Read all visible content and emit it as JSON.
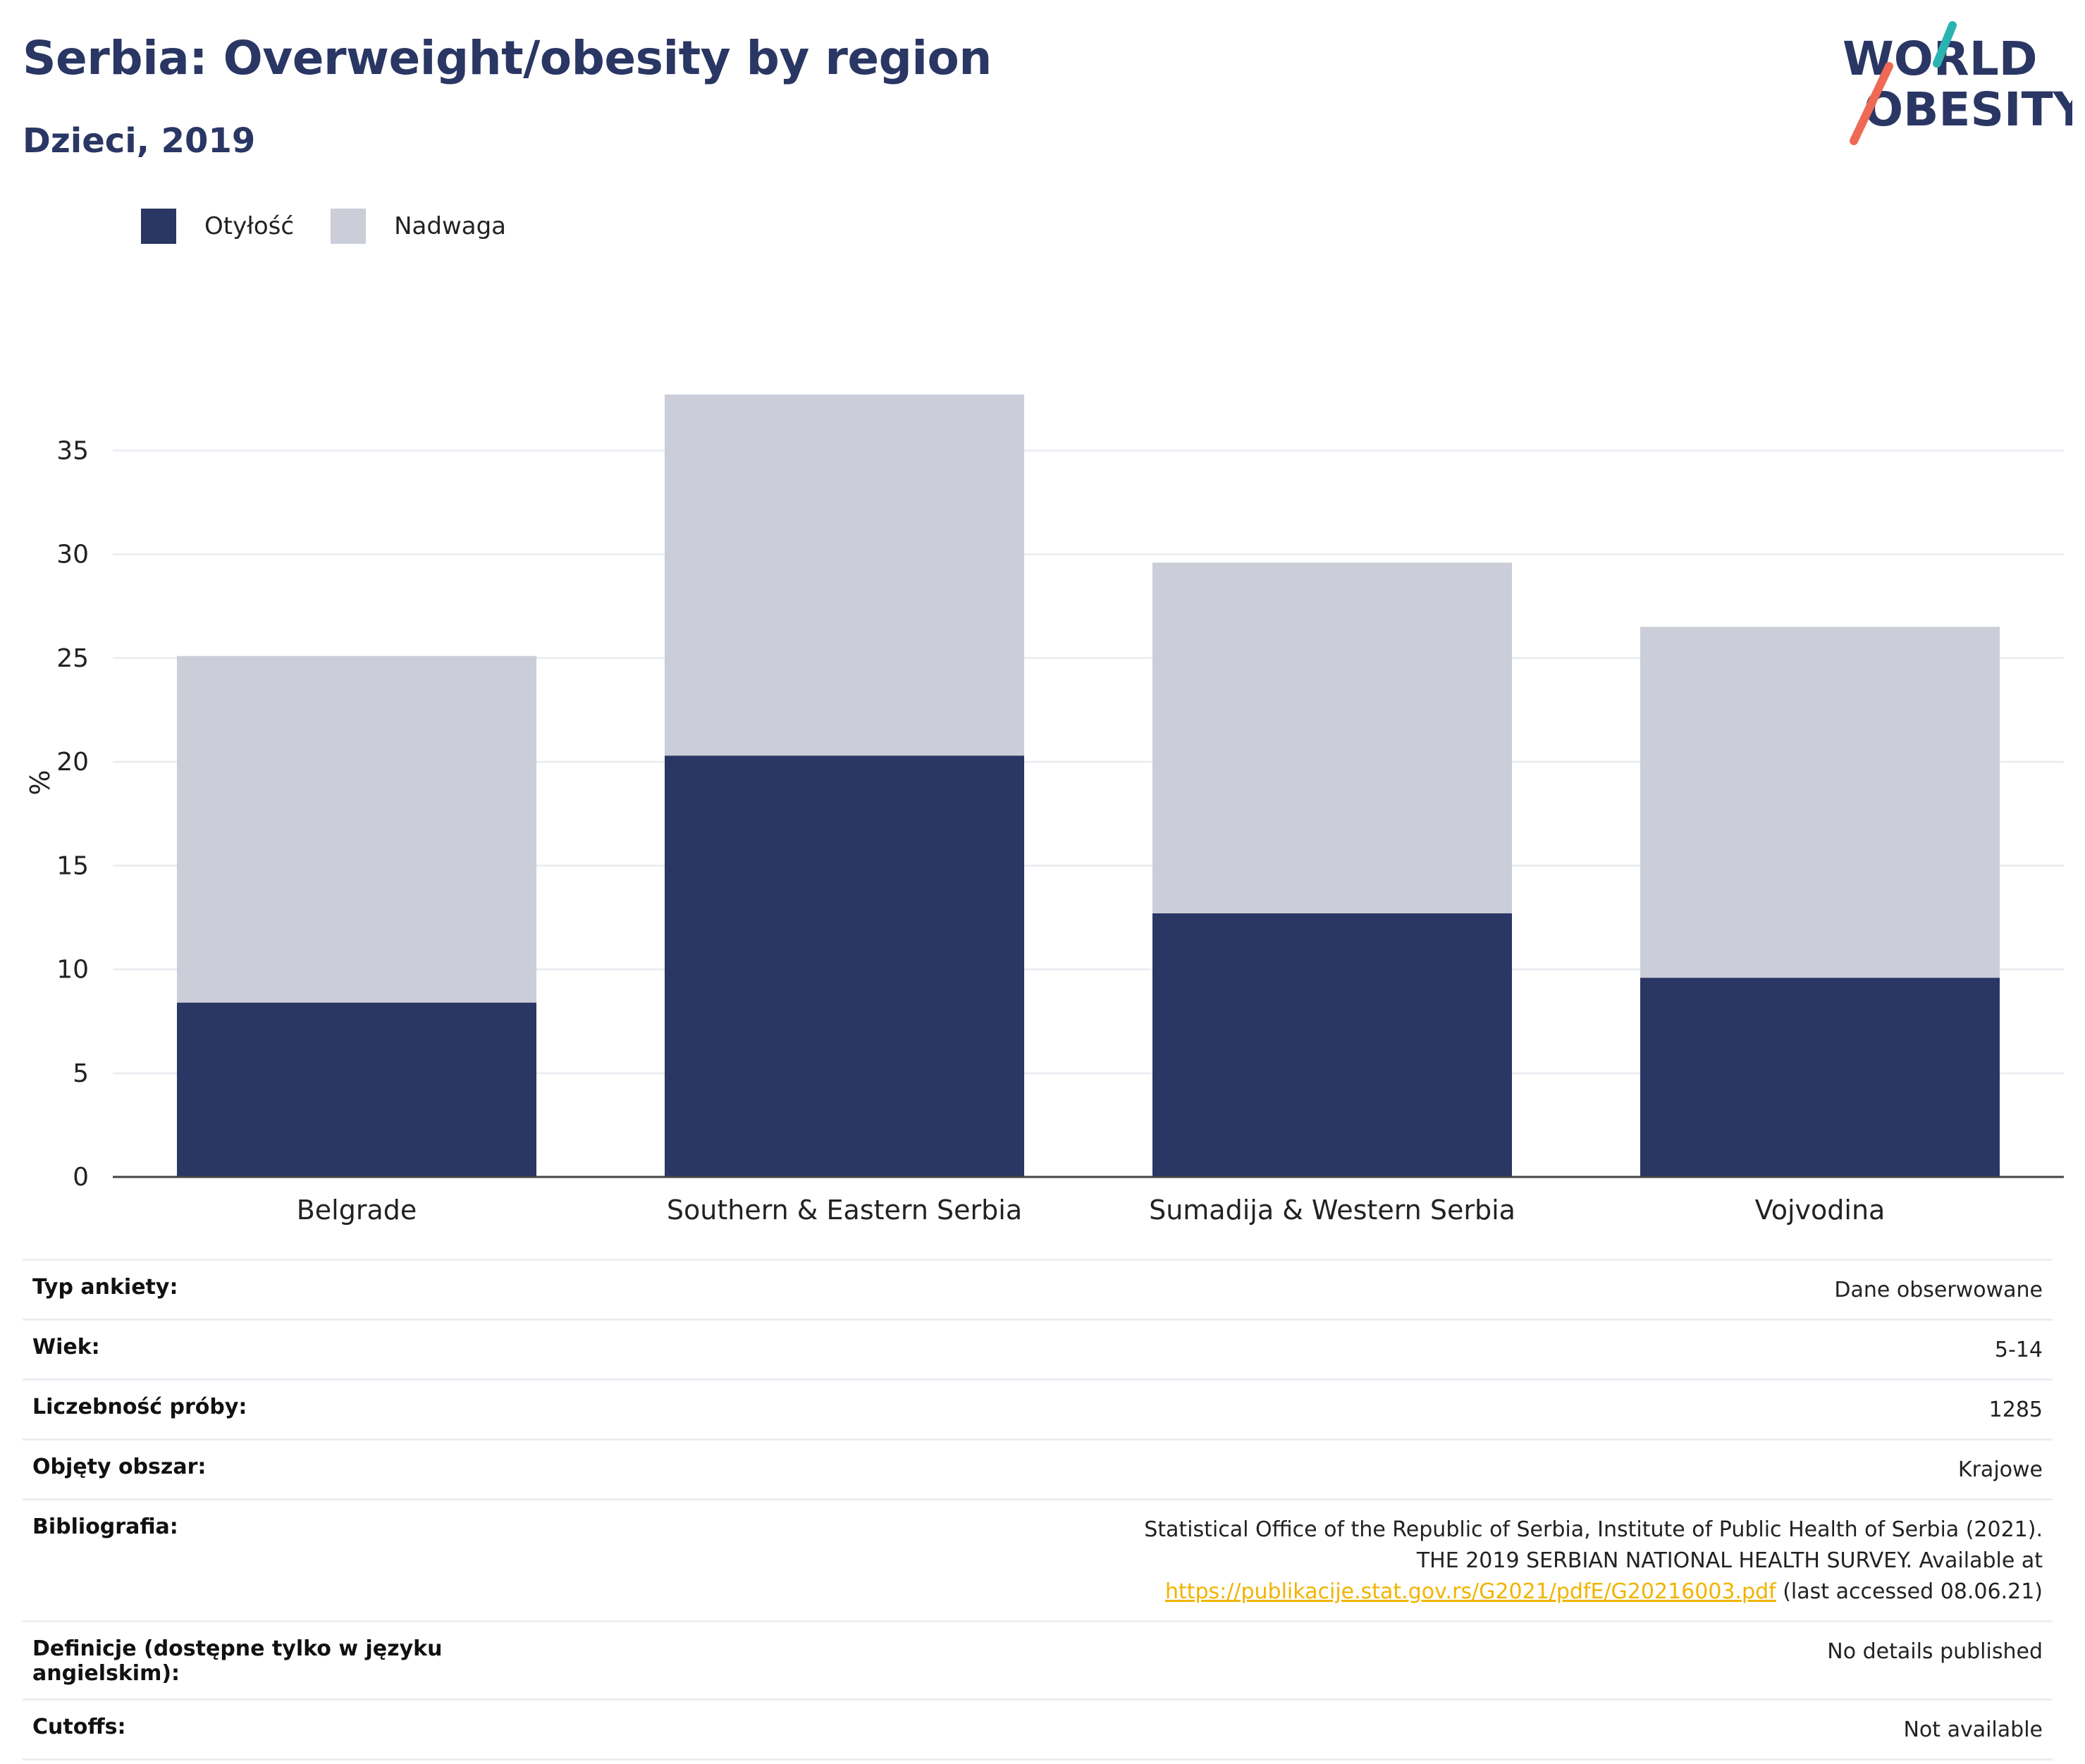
{
  "header": {
    "title": "Serbia: Overweight/obesity by region",
    "subtitle": "Dzieci, 2019"
  },
  "logo": {
    "line1": "WORLD",
    "line2": "OBESITY"
  },
  "colors": {
    "obesity": "#2a3663",
    "overweight": "#cbcdd8",
    "title": "#2a3663",
    "link": "#f0b400"
  },
  "chart_data": {
    "type": "bar",
    "stacked": true,
    "categories": [
      "Belgrade",
      "Southern & Eastern Serbia",
      "Sumadija & Western Serbia",
      "Vojvodina"
    ],
    "series": [
      {
        "name": "Otyłość",
        "values": [
          8.4,
          20.3,
          12.7,
          9.6
        ]
      },
      {
        "name": "Nadwaga",
        "values": [
          16.7,
          17.4,
          16.9,
          16.9
        ]
      }
    ],
    "ylabel": "%",
    "xlabel": "",
    "ylim": [
      0,
      40
    ],
    "yticks": [
      0,
      5,
      10,
      15,
      20,
      25,
      30,
      35
    ],
    "grid": true,
    "legend_position": "top-left"
  },
  "info": {
    "rows": [
      {
        "key": "Typ ankiety:",
        "value": "Dane obserwowane"
      },
      {
        "key": "Wiek:",
        "value": "5-14"
      },
      {
        "key": "Liczebność próby:",
        "value": "1285"
      },
      {
        "key": "Objęty obszar:",
        "value": "Krajowe"
      },
      {
        "key": "Bibliografia:",
        "value_before": "Statistical Office of the Republic of Serbia, Institute of Public Health of Serbia (2021). THE 2019 SERBIAN NATIONAL HEALTH SURVEY. Available at ",
        "link": "https://publikacije.stat.gov.rs/G2021/pdfE/G20216003.pdf",
        "value_after": " (last accessed 08.06.21)"
      },
      {
        "key": "Definicje (dostępne tylko w języku angielskim):",
        "value": "No details published"
      },
      {
        "key": "Cutoffs:",
        "value": "Not available"
      }
    ]
  }
}
